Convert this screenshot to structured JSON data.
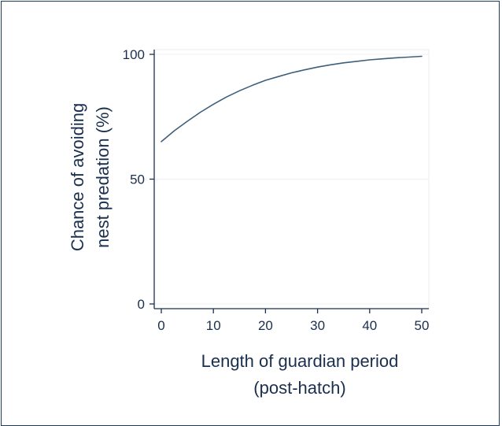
{
  "chart_data": {
    "type": "line",
    "title": "",
    "xlabel_lines": [
      "Length of guardian period",
      "(post-hatch)"
    ],
    "ylabel_lines": [
      "Chance of avoiding",
      "nest predation (%)"
    ],
    "xlim": [
      0,
      50
    ],
    "ylim": [
      0,
      100
    ],
    "xticks": [
      0,
      10,
      20,
      30,
      40,
      50
    ],
    "yticks": [
      0,
      50,
      100
    ],
    "grid": "horizontal",
    "legend": "none",
    "line_color": "#3e5f7c",
    "axis_color": "#1a2f4e",
    "series": [
      {
        "x": [
          0,
          2.5,
          5,
          7.5,
          10,
          12.5,
          15,
          17.5,
          20,
          22.5,
          25,
          27.5,
          30,
          32.5,
          35,
          37.5,
          40,
          42.5,
          45,
          47.5,
          50
        ],
        "y": [
          65,
          69.4,
          73.2,
          76.8,
          80,
          82.9,
          85.4,
          87.6,
          89.6,
          91.1,
          92.6,
          93.8,
          94.9,
          95.8,
          96.6,
          97.2,
          97.8,
          98.2,
          98.6,
          98.9,
          99.2
        ]
      }
    ]
  }
}
